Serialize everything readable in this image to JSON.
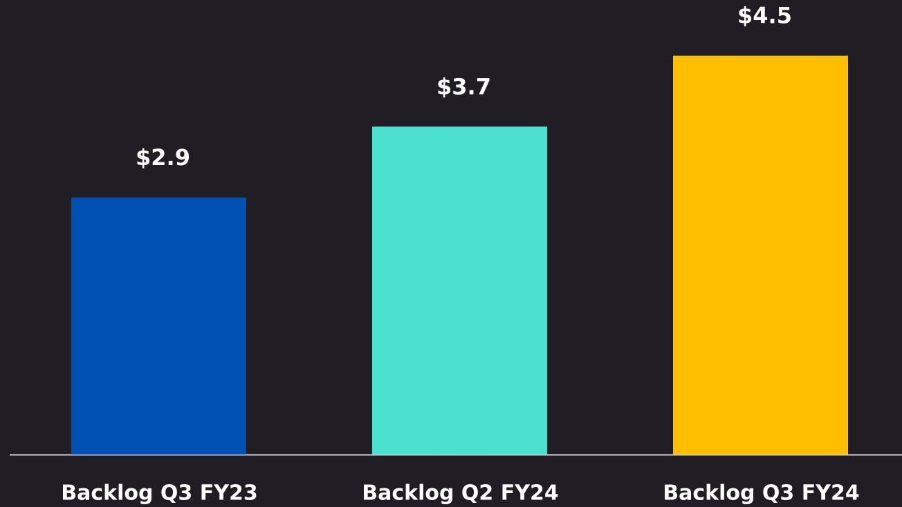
{
  "chart_data": {
    "type": "bar",
    "categories": [
      "Backlog Q3 FY23",
      "Backlog Q2 FY24",
      "Backlog Q3 FY24"
    ],
    "values": [
      2.9,
      3.7,
      4.5
    ],
    "value_labels": [
      "$2.9",
      "$3.7",
      "$4.5"
    ],
    "colors": [
      "#0050b3",
      "#4be0d0",
      "#ffbe00"
    ]
  }
}
